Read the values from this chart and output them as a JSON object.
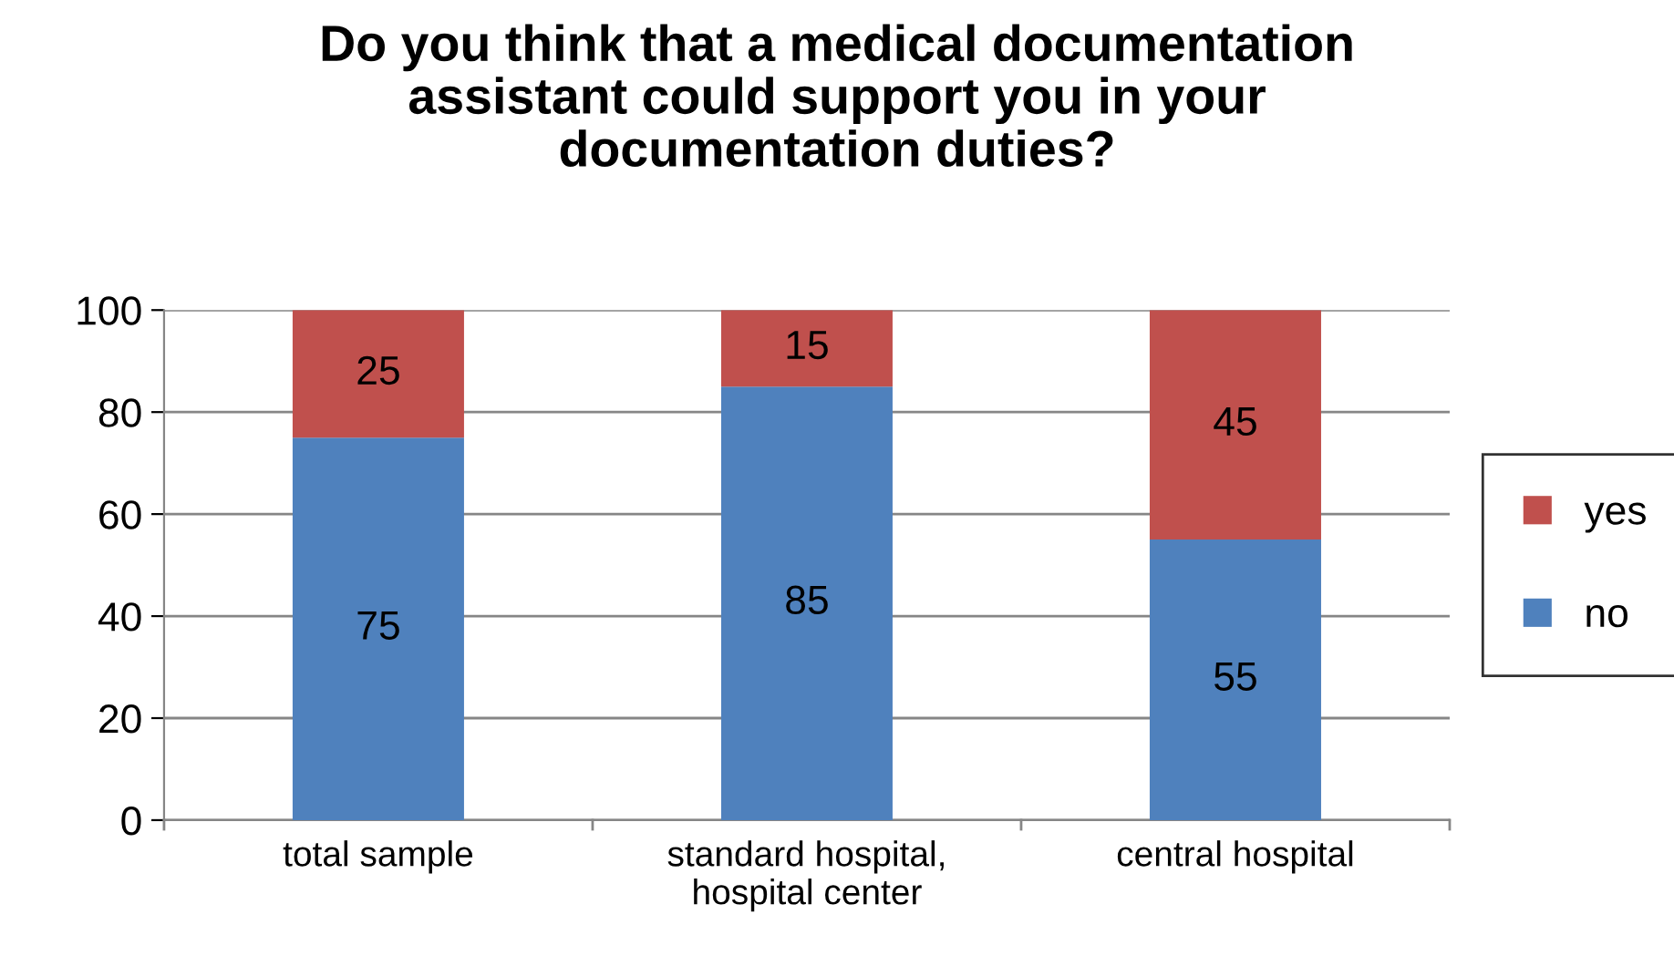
{
  "chart_data": {
    "type": "bar",
    "title": "Do you think that a medical documentation\nassistant could support you in your\ndocumentation duties?",
    "categories": [
      "total sample",
      "standard hospital,\nhospital center",
      "central hospital"
    ],
    "stacked": true,
    "series": [
      {
        "name": "no",
        "color": "#4f81bd",
        "values": [
          75,
          85,
          55
        ]
      },
      {
        "name": "yes",
        "color": "#c0504d",
        "values": [
          25,
          15,
          45
        ]
      }
    ],
    "ylim": [
      0,
      100
    ],
    "yticks": [
      0,
      20,
      40,
      60,
      80,
      100
    ],
    "grid": "y",
    "legend": "right",
    "data_labels": true
  }
}
